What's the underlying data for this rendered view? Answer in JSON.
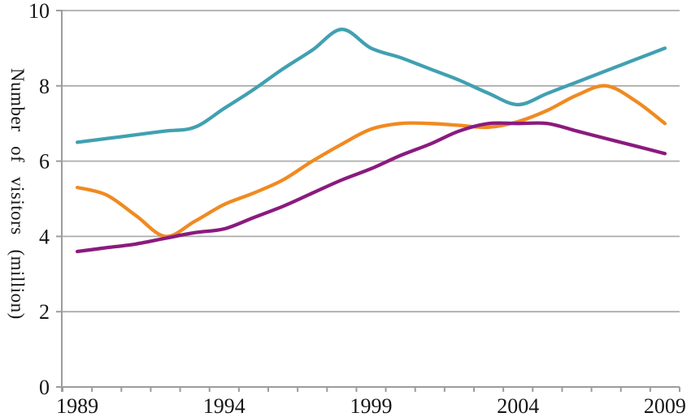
{
  "page": {
    "background": "#ffffff"
  },
  "chart_data": {
    "type": "line",
    "title": "",
    "ylabel": "Number of visitors (million)",
    "xlabel": "",
    "smoothed": true,
    "grid": "horizontal",
    "legend": "none",
    "ylim": [
      0,
      10
    ],
    "y_ticks": [
      0,
      2,
      4,
      6,
      8,
      10
    ],
    "x": [
      1989,
      1990,
      1991,
      1992,
      1993,
      1994,
      1995,
      1996,
      1997,
      1998,
      1999,
      2000,
      2001,
      2002,
      2003,
      2004,
      2005,
      2006,
      2007,
      2008,
      2009
    ],
    "x_tick_labels": [
      "1989",
      "1994",
      "1999",
      "2004",
      "2009"
    ],
    "x_label_positions": [
      1989,
      1994,
      1999,
      2004,
      2009
    ],
    "series": [
      {
        "name": "teal-line",
        "color": "#41A0B1",
        "values": [
          6.5,
          6.6,
          6.7,
          6.8,
          6.9,
          7.4,
          7.9,
          8.45,
          8.95,
          9.5,
          9.0,
          8.75,
          8.45,
          8.15,
          7.8,
          7.5,
          7.8,
          8.1,
          8.4,
          8.7,
          9.0
        ]
      },
      {
        "name": "orange-line",
        "color": "#F08A21",
        "values": [
          5.3,
          5.1,
          4.55,
          4.0,
          4.4,
          4.85,
          5.15,
          5.5,
          6.0,
          6.45,
          6.85,
          7.0,
          7.0,
          6.95,
          6.9,
          7.05,
          7.35,
          7.75,
          8.0,
          7.6,
          7.0
        ]
      },
      {
        "name": "purple-line",
        "color": "#8B1A7E",
        "values": [
          3.6,
          3.7,
          3.8,
          3.95,
          4.1,
          4.2,
          4.5,
          4.8,
          5.15,
          5.5,
          5.8,
          6.15,
          6.45,
          6.8,
          7.0,
          7.0,
          7.0,
          6.8,
          6.6,
          6.4,
          6.2
        ]
      }
    ],
    "colors": {
      "gridline": "#ACACAC",
      "axis": "#9C9C9C",
      "text": "#151515"
    }
  }
}
